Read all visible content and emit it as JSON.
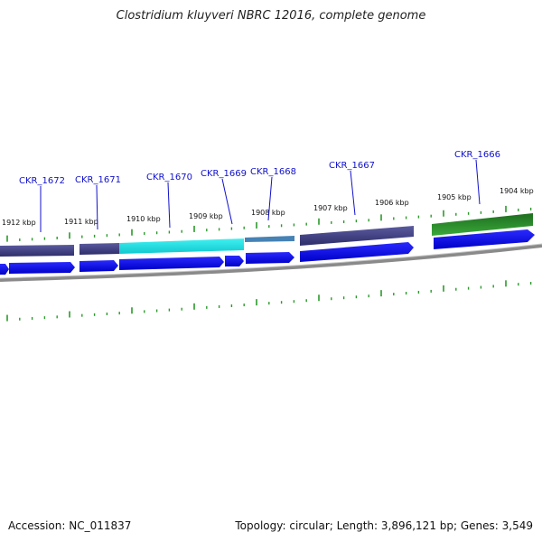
{
  "title": "Clostridium kluyveri NBRC 12016, complete genome",
  "footer": {
    "accession": "Accession: NC_011837",
    "topology": "Topology: circular; Length: 3,896,121 bp; Genes: 3,549"
  },
  "colors": {
    "forward_strand": "#0a0ae6",
    "feature_dark": "#3d3d80",
    "feature_cyan": "#1ad8e0",
    "feature_steel": "#4682b4",
    "feature_green": "#2a9a2a",
    "backbone": "#8a8a8a",
    "tick": "#2a9a2a",
    "label": "#1010cc"
  },
  "kbp_labels": [
    "1912 kbp",
    "1911 kbp",
    "1910 kbp",
    "1909 kbp",
    "1908 kbp",
    "1907 kbp",
    "1906 kbp",
    "1905 kbp",
    "1904 kbp"
  ],
  "genes": [
    "CKR_1672",
    "CKR_1671",
    "CKR_1670",
    "CKR_1669",
    "CKR_1668",
    "CKR_1667",
    "CKR_1666"
  ]
}
